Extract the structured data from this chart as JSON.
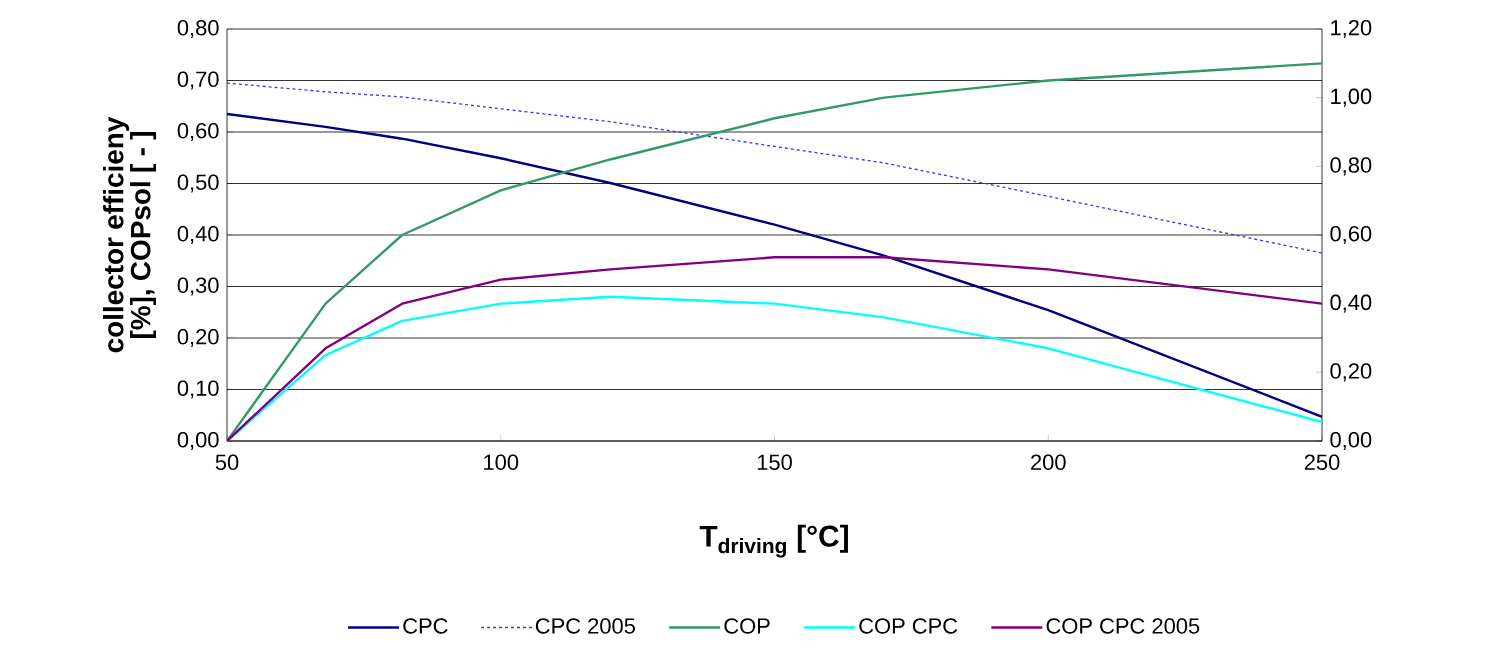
{
  "chart_data": {
    "type": "line",
    "xlabel": "T$_{driving}$ [°C]",
    "ylabel": "collector efficieny [%], COPsol [ - ]",
    "x": [
      50,
      68,
      82,
      100,
      120,
      150,
      170,
      200,
      250
    ],
    "series": [
      {
        "name": "CPC",
        "color": "#000080",
        "values": [
          0.635,
          0.61,
          0.587,
          0.549,
          0.501,
          0.42,
          0.36,
          0.254,
          0.047
        ]
      },
      {
        "name": "CPC 2005",
        "color": "#3333ff",
        "line_style": "dashed",
        "values": [
          0.695,
          0.678,
          0.668,
          0.645,
          0.62,
          0.572,
          0.54,
          0.475,
          0.365
        ]
      },
      {
        "name": "COP",
        "color": "#339966",
        "axis": "y2",
        "values": [
          0,
          0.4,
          0.6,
          0.73,
          0.82,
          0.94,
          1.0,
          1.05,
          1.1
        ]
      },
      {
        "name": "COP CPC",
        "color": "#00ffff",
        "axis": "y2",
        "values": [
          0,
          0.25,
          0.35,
          0.4,
          0.42,
          0.4,
          0.36,
          0.27,
          0.055
        ]
      },
      {
        "name": "COP CPC 2005",
        "color": "#800080",
        "axis": "y2",
        "values": [
          0,
          0.27,
          0.4,
          0.47,
          0.5,
          0.535,
          0.535,
          0.5,
          0.4
        ]
      }
    ],
    "xlim": [
      50,
      250
    ],
    "xticks": [
      50,
      100,
      150,
      200,
      250
    ],
    "ylim": [
      0,
      0.8
    ],
    "yticks": [
      {
        "value": 0,
        "label": "0,00"
      },
      {
        "value": 0.1,
        "label": "0,10"
      },
      {
        "value": 0.2,
        "label": "0,20"
      },
      {
        "value": 0.3,
        "label": "0,30"
      },
      {
        "value": 0.4,
        "label": "0,40"
      },
      {
        "value": 0.5,
        "label": "0,50"
      },
      {
        "value": 0.6,
        "label": "0,60"
      },
      {
        "value": 0.7,
        "label": "0,70"
      },
      {
        "value": 0.8,
        "label": "0,80"
      }
    ],
    "y2lim": [
      0,
      1.2
    ],
    "y2ticks": [
      {
        "value": 0,
        "label": "0,00"
      },
      {
        "value": 0.2,
        "label": "0,20"
      },
      {
        "value": 0.4,
        "label": "0,40"
      },
      {
        "value": 0.6,
        "label": "0,60"
      },
      {
        "value": 0.8,
        "label": "0,80"
      },
      {
        "value": 1.0,
        "label": "1,00"
      },
      {
        "value": 1.2,
        "label": "1,20"
      }
    ],
    "grid": "y",
    "legend": "bottom"
  }
}
